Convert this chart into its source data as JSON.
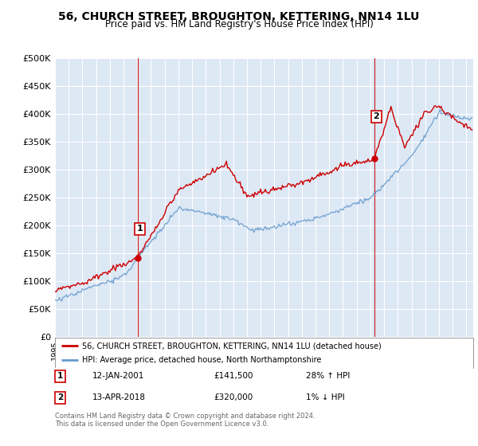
{
  "title": "56, CHURCH STREET, BROUGHTON, KETTERING, NN14 1LU",
  "subtitle": "Price paid vs. HM Land Registry's House Price Index (HPI)",
  "ylabel_ticks": [
    "£0",
    "£50K",
    "£100K",
    "£150K",
    "£200K",
    "£250K",
    "£300K",
    "£350K",
    "£400K",
    "£450K",
    "£500K"
  ],
  "ytick_values": [
    0,
    50000,
    100000,
    150000,
    200000,
    250000,
    300000,
    350000,
    400000,
    450000,
    500000
  ],
  "ylim": [
    0,
    500000
  ],
  "xlim_start": 1995.0,
  "xlim_end": 2025.5,
  "sale1": {
    "label": "1",
    "date": "12-JAN-2001",
    "price": 141500,
    "pct": "28%",
    "dir": "↑",
    "x": 2001.04
  },
  "sale2": {
    "label": "2",
    "date": "13-APR-2018",
    "price": 320000,
    "pct": "1%",
    "dir": "↓",
    "x": 2018.28
  },
  "legend_line1": "56, CHURCH STREET, BROUGHTON, KETTERING, NN14 1LU (detached house)",
  "legend_line2": "HPI: Average price, detached house, North Northamptonshire",
  "footnote": "Contains HM Land Registry data © Crown copyright and database right 2024.\nThis data is licensed under the Open Government Licence v3.0.",
  "line_color_red": "#cc0000",
  "line_color_blue": "#6699cc",
  "chart_bg_color": "#dde8f5",
  "background_color": "#ffffff",
  "grid_color": "#ffffff",
  "title_fontsize": 10,
  "subtitle_fontsize": 8.5,
  "tick_fontsize": 8
}
